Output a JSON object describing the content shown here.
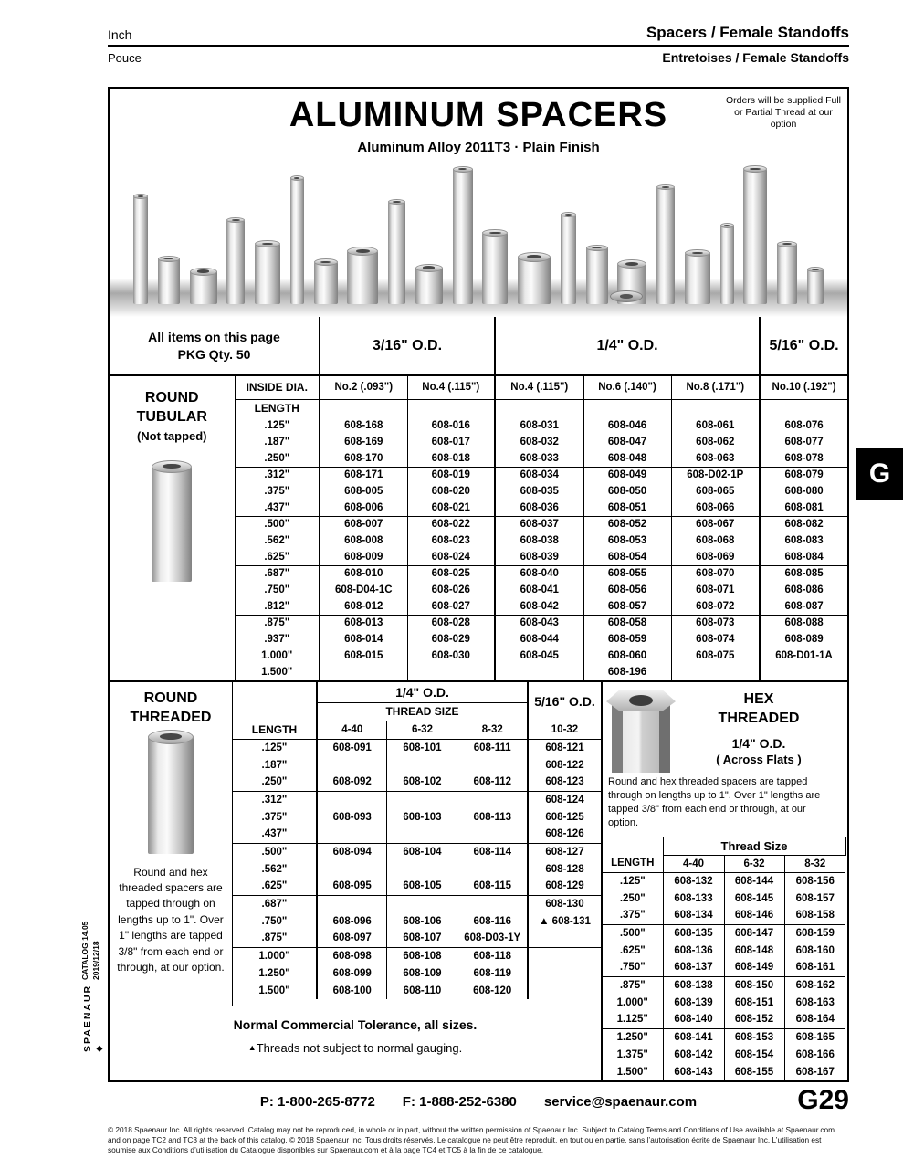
{
  "masthead": {
    "lang_en": "Inch",
    "lang_fr": "Pouce",
    "category_en": "Spacers / Female Standoffs",
    "category_fr": "Entretoises / Female Standoffs"
  },
  "title_block": {
    "title": "ALUMINUM SPACERS",
    "subtitle": "Aluminum Alloy 2011T3   ·   Plain Finish",
    "orders_note": "Orders will be supplied Full or Partial Thread at our option"
  },
  "tubular": {
    "pkg_line1": "All items on this page",
    "pkg_line2": "PKG Qty. 50",
    "od_316": "3/16\" O.D.",
    "od_14": "1/4\" O.D.",
    "od_516": "5/16\" O.D.",
    "inside_dia": "INSIDE DIA.",
    "length": "LENGTH",
    "cols": [
      "No.2 (.093\")",
      "No.4 (.115\")",
      "No.4 (.115\")",
      "No.6 (.140\")",
      "No.8 (.171\")",
      "No.10 (.192\")"
    ],
    "heading1": "ROUND",
    "heading2": "TUBULAR",
    "subnote": "(Not tapped)",
    "rows": [
      {
        "len": ".125\"",
        "p": [
          "608-168",
          "608-016",
          "608-031",
          "608-046",
          "608-061",
          "608-076"
        ]
      },
      {
        "len": ".187\"",
        "p": [
          "608-169",
          "608-017",
          "608-032",
          "608-047",
          "608-062",
          "608-077"
        ]
      },
      {
        "len": ".250\"",
        "p": [
          "608-170",
          "608-018",
          "608-033",
          "608-048",
          "608-063",
          "608-078"
        ]
      },
      {
        "len": ".312\"",
        "p": [
          "608-171",
          "608-019",
          "608-034",
          "608-049",
          "608-D02-1P",
          "608-079"
        ]
      },
      {
        "len": ".375\"",
        "p": [
          "608-005",
          "608-020",
          "608-035",
          "608-050",
          "608-065",
          "608-080"
        ]
      },
      {
        "len": ".437\"",
        "p": [
          "608-006",
          "608-021",
          "608-036",
          "608-051",
          "608-066",
          "608-081"
        ]
      },
      {
        "len": ".500\"",
        "p": [
          "608-007",
          "608-022",
          "608-037",
          "608-052",
          "608-067",
          "608-082"
        ]
      },
      {
        "len": ".562\"",
        "p": [
          "608-008",
          "608-023",
          "608-038",
          "608-053",
          "608-068",
          "608-083"
        ]
      },
      {
        "len": ".625\"",
        "p": [
          "608-009",
          "608-024",
          "608-039",
          "608-054",
          "608-069",
          "608-084"
        ]
      },
      {
        "len": ".687\"",
        "p": [
          "608-010",
          "608-025",
          "608-040",
          "608-055",
          "608-070",
          "608-085"
        ]
      },
      {
        "len": ".750\"",
        "p": [
          "608-D04-1C",
          "608-026",
          "608-041",
          "608-056",
          "608-071",
          "608-086"
        ]
      },
      {
        "len": ".812\"",
        "p": [
          "608-012",
          "608-027",
          "608-042",
          "608-057",
          "608-072",
          "608-087"
        ]
      },
      {
        "len": ".875\"",
        "p": [
          "608-013",
          "608-028",
          "608-043",
          "608-058",
          "608-073",
          "608-088"
        ]
      },
      {
        "len": ".937\"",
        "p": [
          "608-014",
          "608-029",
          "608-044",
          "608-059",
          "608-074",
          "608-089"
        ]
      },
      {
        "len": "1.000\"",
        "p": [
          "608-015",
          "608-030",
          "608-045",
          "608-060",
          "608-075",
          "608-D01-1A"
        ]
      },
      {
        "len": "1.500\"",
        "p": [
          "",
          "",
          "",
          "608-196",
          "",
          ""
        ]
      }
    ]
  },
  "threaded": {
    "heading1": "ROUND",
    "heading2": "THREADED",
    "od_14": "1/4\" O.D.",
    "od_516": "5/16\" O.D.",
    "thread_size": "THREAD SIZE",
    "length": "LENGTH",
    "cols": [
      "4-40",
      "6-32",
      "8-32",
      "10-32"
    ],
    "description": "Round and hex threaded spacers are tapped through on lengths up to 1\". Over 1\" lengths are tapped 3/8\" from each end or through, at our option.",
    "rows": [
      {
        "len": ".125\"",
        "p": [
          "608-091",
          "608-101",
          "608-111",
          "608-121"
        ]
      },
      {
        "len": ".187\"",
        "p": [
          "",
          "",
          "",
          "608-122"
        ]
      },
      {
        "len": ".250\"",
        "p": [
          "608-092",
          "608-102",
          "608-112",
          "608-123"
        ]
      },
      {
        "len": ".312\"",
        "p": [
          "",
          "",
          "",
          "608-124"
        ]
      },
      {
        "len": ".375\"",
        "p": [
          "608-093",
          "608-103",
          "608-113",
          "608-125"
        ]
      },
      {
        "len": ".437\"",
        "p": [
          "",
          "",
          "",
          "608-126"
        ]
      },
      {
        "len": ".500\"",
        "p": [
          "608-094",
          "608-104",
          "608-114",
          "608-127"
        ]
      },
      {
        "len": ".562\"",
        "p": [
          "",
          "",
          "",
          "608-128"
        ]
      },
      {
        "len": ".625\"",
        "p": [
          "608-095",
          "608-105",
          "608-115",
          "608-129"
        ]
      },
      {
        "len": ".687\"",
        "p": [
          "",
          "",
          "",
          "608-130"
        ]
      },
      {
        "len": ".750\"",
        "p": [
          "608-096",
          "608-106",
          "608-116",
          "▲ 608-131"
        ]
      },
      {
        "len": ".875\"",
        "p": [
          "608-097",
          "608-107",
          "608-D03-1Y",
          ""
        ]
      },
      {
        "len": "1.000\"",
        "p": [
          "608-098",
          "608-108",
          "608-118",
          ""
        ]
      },
      {
        "len": "1.250\"",
        "p": [
          "608-099",
          "608-109",
          "608-119",
          ""
        ]
      },
      {
        "len": "1.500\"",
        "p": [
          "608-100",
          "608-110",
          "608-120",
          ""
        ]
      }
    ],
    "note1": "Normal Commercial Tolerance, all sizes.",
    "note2_marker": "▲",
    "note2": "Threads not subject to normal gauging."
  },
  "hex": {
    "heading1": "HEX",
    "heading2": "THREADED",
    "od": "1/4\" O.D.",
    "across_flats": "( Across Flats )",
    "description": "Round and hex threaded spacers are tapped through on lengths up to 1\".  Over 1\" lengths are tapped 3/8\" from each end or through, at our option.",
    "thread_size": "Thread Size",
    "length": "LENGTH",
    "cols": [
      "4-40",
      "6-32",
      "8-32"
    ],
    "rows": [
      {
        "len": ".125\"",
        "p": [
          "608-132",
          "608-144",
          "608-156"
        ]
      },
      {
        "len": ".250\"",
        "p": [
          "608-133",
          "608-145",
          "608-157"
        ]
      },
      {
        "len": ".375\"",
        "p": [
          "608-134",
          "608-146",
          "608-158"
        ]
      },
      {
        "len": ".500\"",
        "p": [
          "608-135",
          "608-147",
          "608-159"
        ]
      },
      {
        "len": ".625\"",
        "p": [
          "608-136",
          "608-148",
          "608-160"
        ]
      },
      {
        "len": ".750\"",
        "p": [
          "608-137",
          "608-149",
          "608-161"
        ]
      },
      {
        "len": ".875\"",
        "p": [
          "608-138",
          "608-150",
          "608-162"
        ]
      },
      {
        "len": "1.000\"",
        "p": [
          "608-139",
          "608-151",
          "608-163"
        ]
      },
      {
        "len": "1.125\"",
        "p": [
          "608-140",
          "608-152",
          "608-164"
        ]
      },
      {
        "len": "1.250\"",
        "p": [
          "608-141",
          "608-153",
          "608-165"
        ]
      },
      {
        "len": "1.375\"",
        "p": [
          "608-142",
          "608-154",
          "608-166"
        ]
      },
      {
        "len": "1.500\"",
        "p": [
          "608-143",
          "608-155",
          "608-167"
        ]
      }
    ]
  },
  "sidebar": {
    "catalog": "CATALOG 14.05",
    "date": "2019/12/18",
    "brand": "SPAENAUR",
    "tab": "G"
  },
  "footer": {
    "phone": "P: 1-800-265-8772",
    "fax": "F: 1-888-252-6380",
    "email": "service@spaenaur.com",
    "page": "G29",
    "copyright_en": "© 2018 Spaenaur Inc. All rights reserved. Catalog may not be reproduced, in whole or in part, without the written permission of Spaenaur Inc. Subject to Catalog Terms and Conditions of Use available at Spaenaur.com and on page TC2 and TC3 at the back of this catalog.",
    "copyright_fr": "© 2018 Spaenaur Inc. Tous droits réservés. Le catalogue ne peut être reproduit, en tout ou en partie, sans l’autorisation écrite de Spaenaur Inc. L’utilisation est soumise aux Conditions d’utilisation du Catalogue disponibles sur Spaenaur.com et à la page TC4 et TC5 à la fin de ce catalogue."
  }
}
